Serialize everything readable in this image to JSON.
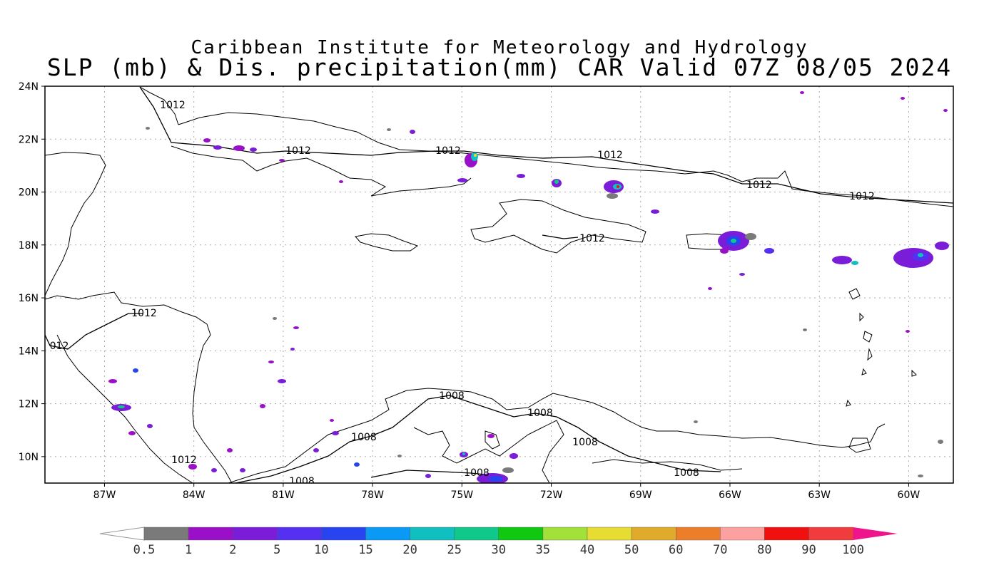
{
  "header": {
    "title_line1": "Caribbean Institute for Meteorology and Hydrology",
    "title_line2": "SLP (mb) & Dis. precipitation(mm) CAR Valid 07Z 08/05 2024"
  },
  "axes": {
    "lat_labels": [
      "24N",
      "22N",
      "20N",
      "18N",
      "16N",
      "14N",
      "12N",
      "10N"
    ],
    "lon_labels": [
      "87W",
      "84W",
      "81W",
      "78W",
      "75W",
      "72W",
      "69W",
      "66W",
      "63W",
      "60W"
    ],
    "lon_range": [
      -89,
      -58.5
    ],
    "lat_range": [
      9,
      24
    ]
  },
  "isobars": [
    {
      "label": "1012"
    },
    {
      "label": "1012"
    },
    {
      "label": "1012"
    },
    {
      "label": "1012"
    },
    {
      "label": "1012"
    },
    {
      "label": "1012"
    },
    {
      "label": "1012"
    },
    {
      "label": "1012"
    },
    {
      "label": "012"
    },
    {
      "label": "1012"
    },
    {
      "label": "1008"
    },
    {
      "label": "1008"
    },
    {
      "label": "1008"
    },
    {
      "label": "1008"
    },
    {
      "label": "1008"
    },
    {
      "label": "1008"
    },
    {
      "label": "1008"
    }
  ],
  "colorbar": {
    "labels": [
      "0.5",
      "1",
      "2",
      "5",
      "10",
      "15",
      "20",
      "25",
      "30",
      "35",
      "40",
      "50",
      "60",
      "70",
      "80",
      "90",
      "100"
    ],
    "colors": [
      "#7a7a7a",
      "#9a10c8",
      "#7a1cd8",
      "#5530f0",
      "#2844f0",
      "#0a9af5",
      "#10c0c0",
      "#10c88a",
      "#10c810",
      "#a2e03a",
      "#e6dc32",
      "#e0aa2a",
      "#ec7e2a",
      "#fca0a0",
      "#f01010",
      "#f03c3c",
      "#f0148c"
    ]
  },
  "colors": {
    "coast": "#000000",
    "grid": "#aaaaaa",
    "background": "#ffffff"
  }
}
